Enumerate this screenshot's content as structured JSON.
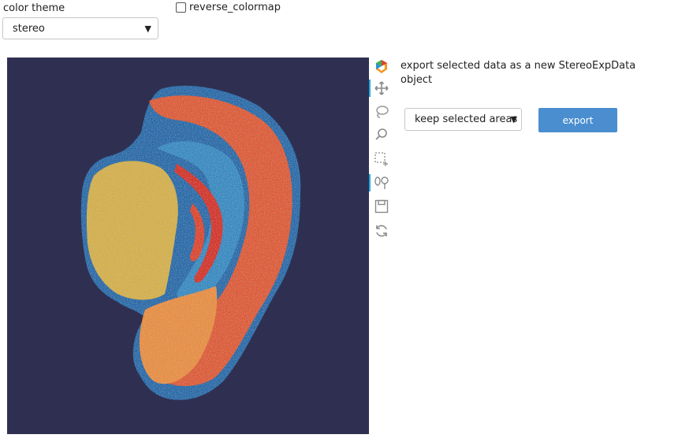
{
  "color_theme": {
    "label": "color theme",
    "selected": "stereo"
  },
  "reverse_colormap": {
    "label": "reverse_colormap",
    "checked": false
  },
  "plot": {
    "background": "#2f3051"
  },
  "toolbar": {
    "tools": [
      "bokeh-logo-icon",
      "pan-icon",
      "lasso-select-icon",
      "wheel-zoom-icon",
      "box-select-icon",
      "poly-select-icon",
      "save-icon",
      "reset-icon"
    ]
  },
  "export_panel": {
    "description": "export selected data as a new StereoExpData object",
    "mode_selected": "keep selected areas",
    "export_label": "export"
  },
  "colors": {
    "accent": "#4a8ed0",
    "hot": "#e03a1e",
    "warm": "#f4a23a",
    "cool": "#1f73b7"
  }
}
